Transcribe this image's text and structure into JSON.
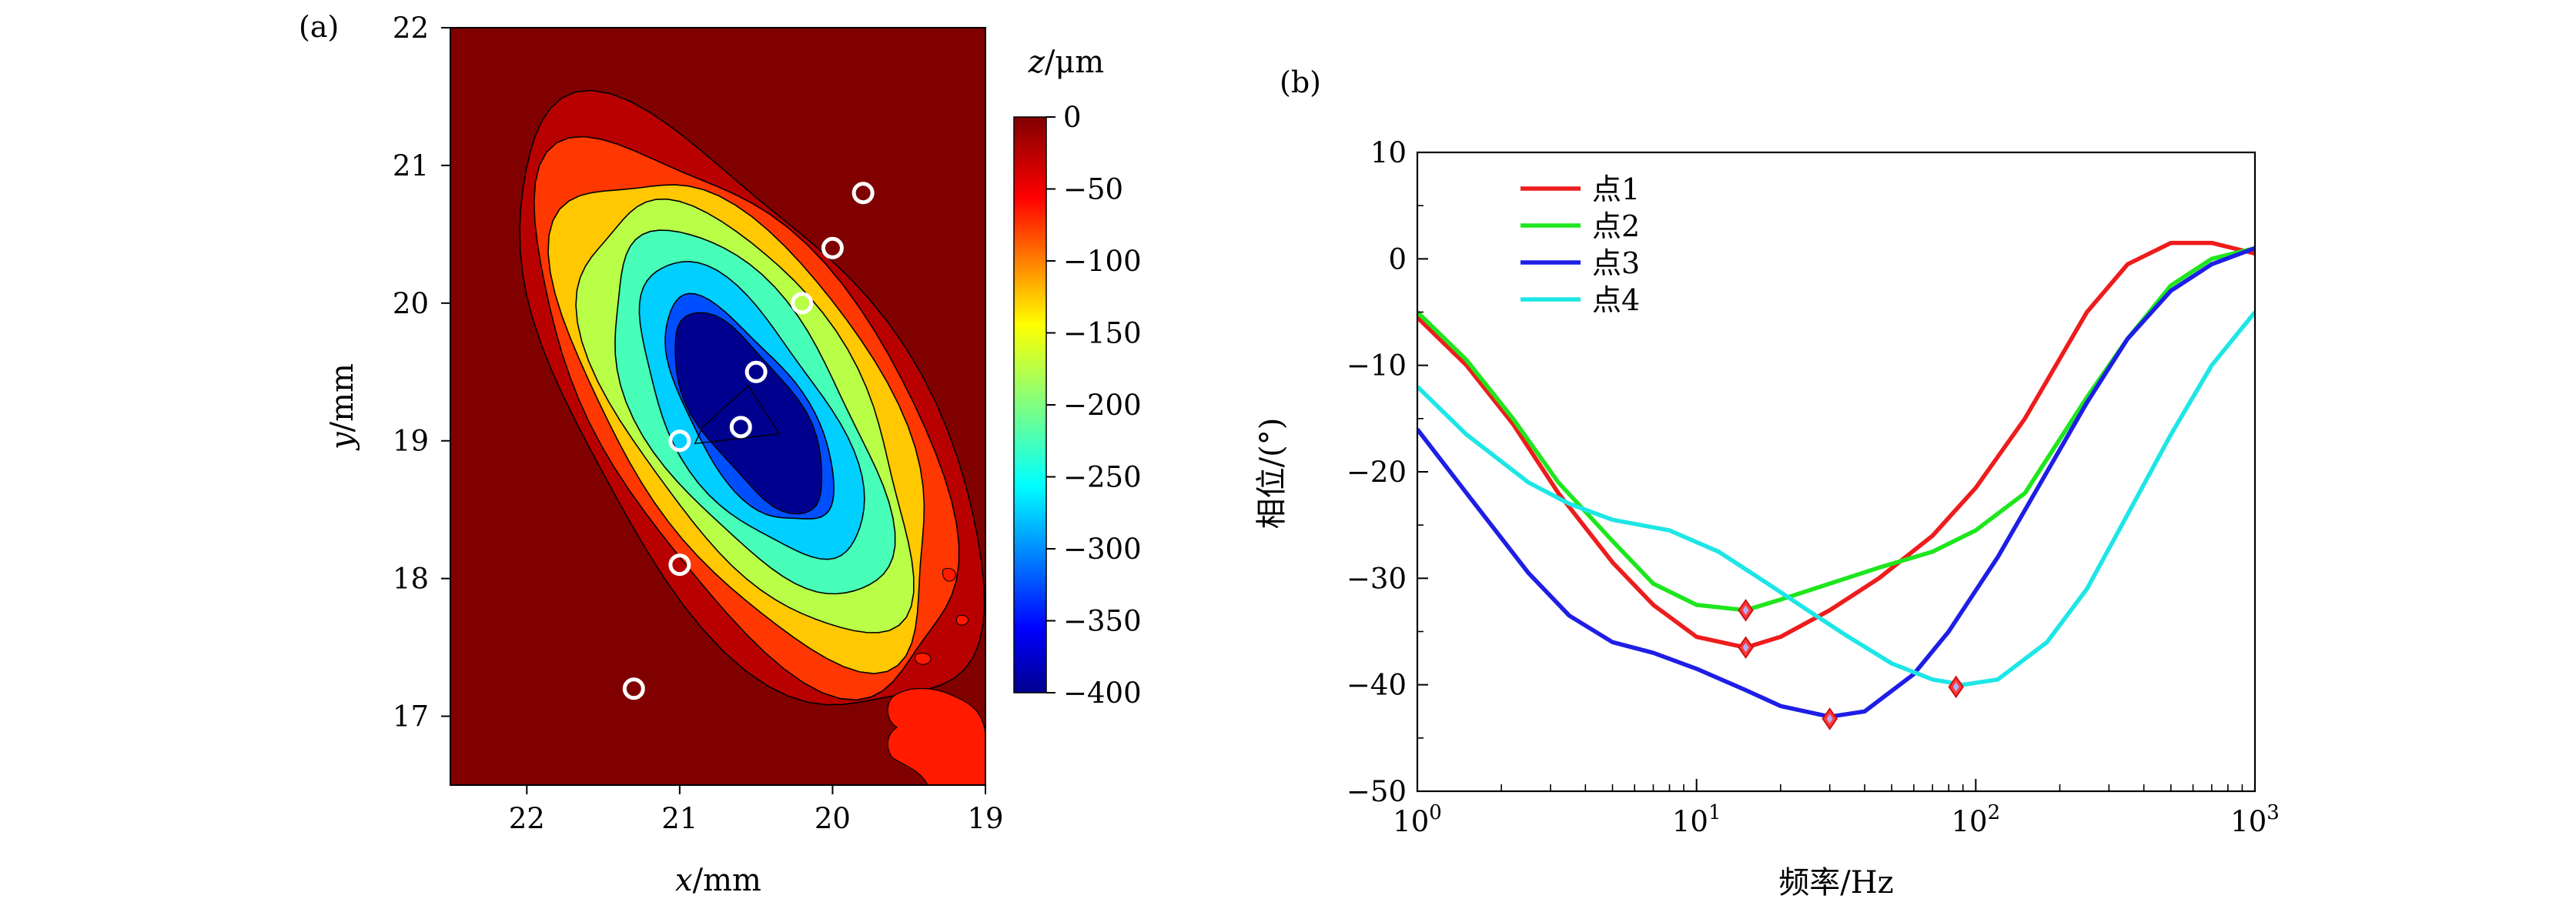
{
  "panel_a": {
    "label": "(a)",
    "xlabel_var": "x",
    "xlabel_unit": "/mm",
    "ylabel_var": "y",
    "ylabel_unit": "/mm",
    "colorbar_label_var": "z",
    "colorbar_label_unit": "/μm"
  },
  "panel_b": {
    "label": "(b)",
    "xlabel": "频率/Hz",
    "ylabel": "相位/(°)"
  },
  "chart_data": [
    {
      "type": "heatmap",
      "xlim": [
        22.5,
        19.0
      ],
      "ylim": [
        16.5,
        22.0
      ],
      "xticks": [
        22,
        21,
        20,
        19
      ],
      "xtick_labels": [
        "22",
        "21",
        "20",
        "19"
      ],
      "yticks": [
        17,
        18,
        19,
        20,
        21,
        22
      ],
      "ytick_labels": [
        "17",
        "18",
        "19",
        "20",
        "21",
        "22"
      ],
      "colorbar": {
        "range": [
          -400,
          0
        ],
        "ticks": [
          0,
          -50,
          -100,
          -150,
          -200,
          -250,
          -300,
          -350,
          -400
        ],
        "tick_labels": [
          "0",
          "−50",
          "−100",
          "−150",
          "−200",
          "−250",
          "−300",
          "−350",
          "−400"
        ],
        "colormap": "jet"
      },
      "contour_levels": [
        -50,
        -100,
        -150,
        -200,
        -250,
        -300,
        -350
      ],
      "background_color": "#800000",
      "measurement_points": [
        {
          "x": 20.5,
          "y": 19.5
        },
        {
          "x": 20.6,
          "y": 19.1
        },
        {
          "x": 21.0,
          "y": 19.0
        },
        {
          "x": 20.2,
          "y": 20.0
        },
        {
          "x": 20.0,
          "y": 20.4
        },
        {
          "x": 19.8,
          "y": 20.8
        },
        {
          "x": 21.0,
          "y": 18.1
        },
        {
          "x": 21.3,
          "y": 17.2
        }
      ]
    },
    {
      "type": "line",
      "xscale": "log",
      "xlim": [
        1,
        1000
      ],
      "ylim": [
        -50,
        10
      ],
      "xticks": [
        1,
        10,
        100,
        1000
      ],
      "xtick_labels": [
        [
          "10",
          "0"
        ],
        [
          "10",
          "1"
        ],
        [
          "10",
          "2"
        ],
        [
          "10",
          "3"
        ]
      ],
      "yticks": [
        10,
        0,
        -10,
        -20,
        -30,
        -40,
        -50
      ],
      "ytick_labels": [
        "10",
        "0",
        "−10",
        "−20",
        "−30",
        "−40",
        "−50"
      ],
      "legend": "top-left",
      "series": [
        {
          "name": "点1",
          "color": "#ee1c1c",
          "x": [
            1,
            1.5,
            2.2,
            3.2,
            5,
            7,
            10,
            15,
            20,
            30,
            45,
            70,
            100,
            150,
            250,
            350,
            500,
            700,
            1000
          ],
          "y": [
            -5.5,
            -10,
            -15.5,
            -22,
            -28.5,
            -32.5,
            -35.5,
            -36.5,
            -35.5,
            -33,
            -30,
            -26,
            -21.5,
            -15,
            -5,
            -0.5,
            1.5,
            1.5,
            0.5
          ]
        },
        {
          "name": "点2",
          "color": "#1ee61e",
          "x": [
            1,
            1.5,
            2.2,
            3.2,
            5,
            7,
            10,
            15,
            20,
            30,
            45,
            70,
            100,
            150,
            250,
            350,
            500,
            700,
            1000
          ],
          "y": [
            -5,
            -9.5,
            -15,
            -21,
            -26.5,
            -30.5,
            -32.5,
            -33,
            -32,
            -30.5,
            -29,
            -27.5,
            -25.5,
            -22,
            -13,
            -7.5,
            -2.5,
            0,
            1
          ]
        },
        {
          "name": "点3",
          "color": "#1e1ee6",
          "x": [
            1,
            1.5,
            2.5,
            3.5,
            5,
            7,
            10,
            15,
            20,
            30,
            40,
            60,
            80,
            120,
            180,
            250,
            350,
            500,
            700,
            1000
          ],
          "y": [
            -16,
            -22,
            -29.5,
            -33.5,
            -36,
            -37,
            -38.5,
            -40.5,
            -42,
            -43,
            -42.5,
            -39,
            -35,
            -28,
            -20,
            -13.5,
            -7.5,
            -3,
            -0.5,
            1
          ]
        },
        {
          "name": "点4",
          "color": "#1ee6e6",
          "x": [
            1,
            1.5,
            2.5,
            3.5,
            5,
            8,
            12,
            18,
            25,
            35,
            50,
            70,
            90,
            120,
            180,
            250,
            350,
            500,
            700,
            1000
          ],
          "y": [
            -12,
            -16.5,
            -21,
            -23,
            -24.5,
            -25.5,
            -27.5,
            -30.5,
            -33,
            -35.5,
            -38,
            -39.5,
            -40,
            -39.5,
            -36,
            -31,
            -24,
            -16.5,
            -10,
            -5
          ]
        }
      ],
      "markers": [
        {
          "x": 15,
          "y": -33
        },
        {
          "x": 15,
          "y": -36.5
        },
        {
          "x": 30,
          "y": -43.2
        },
        {
          "x": 85,
          "y": -40.2
        }
      ]
    }
  ]
}
